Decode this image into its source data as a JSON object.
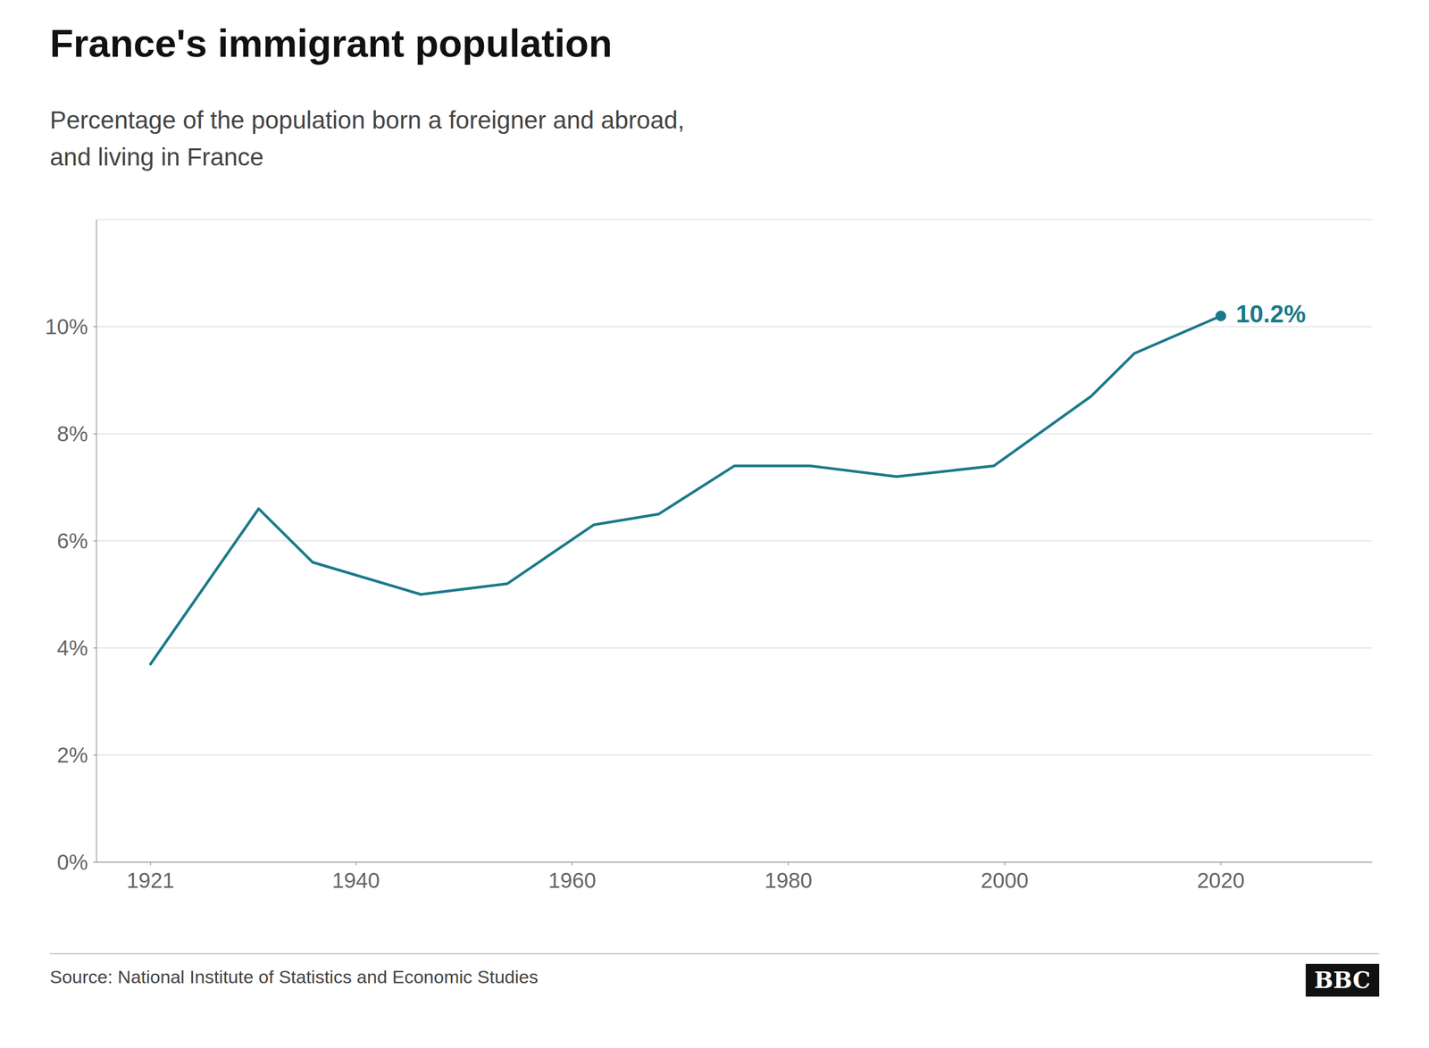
{
  "chart_data": {
    "type": "line",
    "title": "France's immigrant population",
    "subtitle": "Percentage of the population born a foreigner and abroad,\nand living in France",
    "source": "Source: National Institute of Statistics and Economic Studies",
    "logo": "BBC",
    "x": [
      1921,
      1931,
      1936,
      1946,
      1954,
      1962,
      1968,
      1975,
      1982,
      1990,
      1999,
      2008,
      2012,
      2020
    ],
    "values": [
      3.7,
      6.6,
      5.6,
      5.0,
      5.2,
      6.3,
      6.5,
      7.4,
      7.4,
      7.2,
      7.4,
      8.7,
      9.5,
      10.2
    ],
    "color": "#1a7a8a",
    "annotation": "10.2%",
    "xlim": [
      1916,
      2034
    ],
    "xticks": [
      1921,
      1940,
      1960,
      1980,
      2000,
      2020
    ],
    "ylim": [
      0,
      12
    ],
    "yticks": [
      {
        "value": 0,
        "label": "0%"
      },
      {
        "value": 2,
        "label": "2%"
      },
      {
        "value": 4,
        "label": "4%"
      },
      {
        "value": 6,
        "label": "6%"
      },
      {
        "value": 8,
        "label": "8%"
      },
      {
        "value": 10,
        "label": "10%"
      }
    ],
    "grid": true
  }
}
